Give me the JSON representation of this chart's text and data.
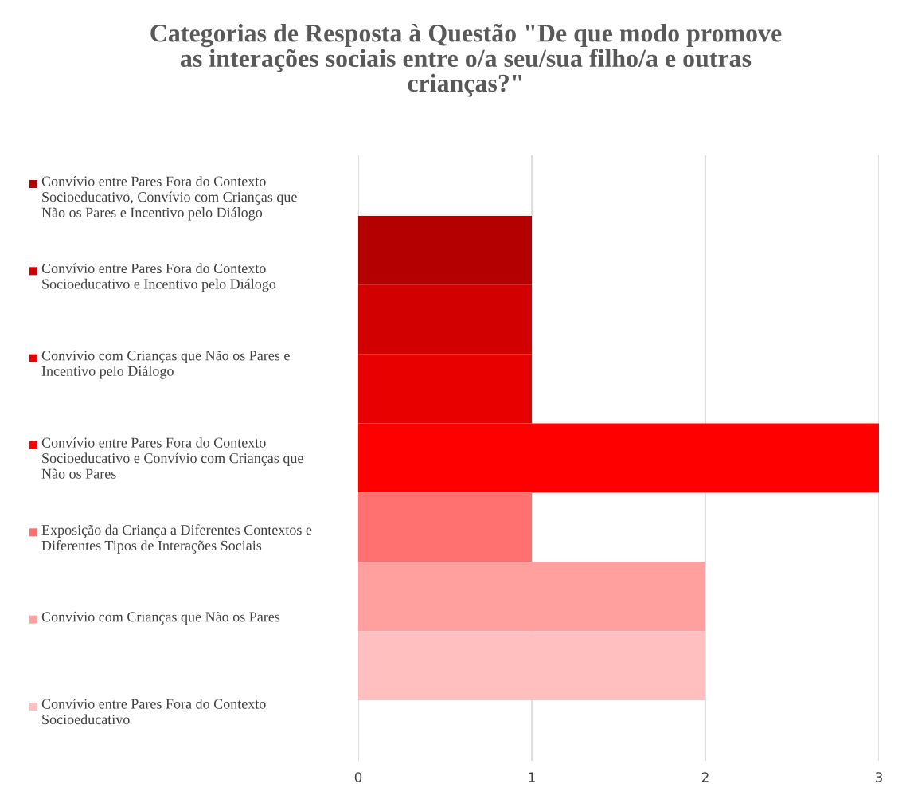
{
  "chart_data": {
    "type": "bar",
    "orientation": "horizontal",
    "title": "Categorias de Resposta à Questão \"De que modo promove as interações sociais entre o/a seu/sua filho/a e outras crianças?\"",
    "categories": [
      null
    ],
    "series": [
      {
        "name": "Convívio entre Pares Fora do Contexto Socioeducativo, Convívio com Crianças que Não os Pares e Incentivo pelo Diálogo",
        "color": "#b40000",
        "values": [
          1
        ]
      },
      {
        "name": "Convívio entre Pares Fora do Contexto Socioeducativo e Incentivo pelo Diálogo",
        "color": "#d20000",
        "values": [
          1
        ]
      },
      {
        "name": "Convívio com Crianças que Não os Pares e Incentivo pelo Diálogo",
        "color": "#e80000",
        "values": [
          1
        ]
      },
      {
        "name": "Convívio entre Pares Fora do Contexto Socioeducativo e Convívio com Crianças que Não os Pares",
        "color": "#ff0000",
        "values": [
          3
        ]
      },
      {
        "name": "Exposição da Criança a Diferentes Contextos e Diferentes Tipos de Interações Sociais",
        "color": "#ff7171",
        "values": [
          1
        ]
      },
      {
        "name": "Convívio com Crianças que Não os Pares",
        "color": "#ffa09f",
        "values": [
          2
        ]
      },
      {
        "name": "Convívio entre Pares Fora do Contexto Socioeducativo",
        "color": "#ffbfbf",
        "values": [
          2
        ]
      }
    ],
    "xlim": [
      0,
      3
    ],
    "xticks": [
      0,
      1,
      2,
      3
    ],
    "grid": "x",
    "legend": "left"
  }
}
